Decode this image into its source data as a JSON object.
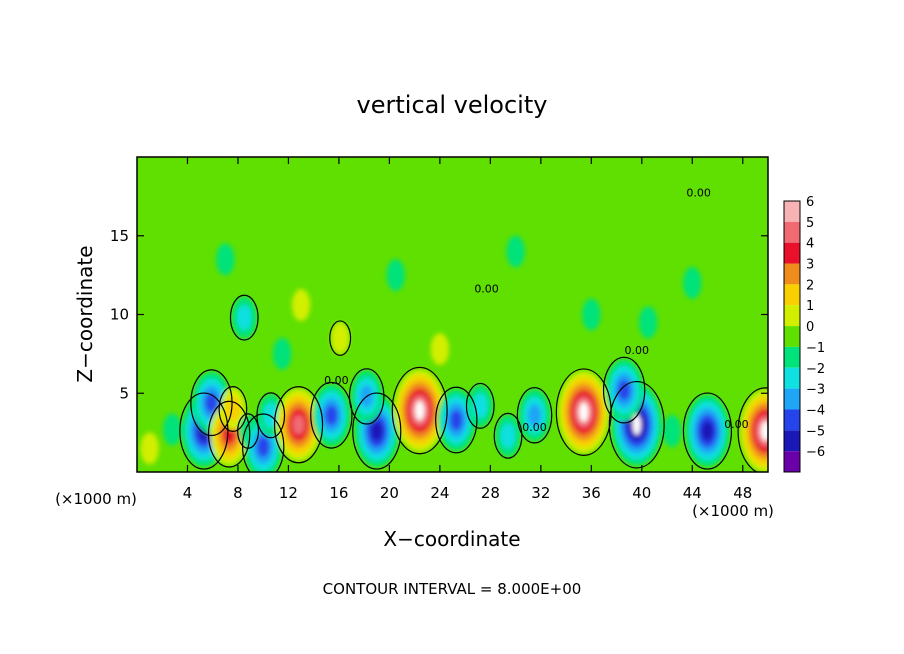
{
  "chart_data": {
    "type": "heatmap",
    "title": "vertical velocity",
    "xlabel": "X−coordinate",
    "ylabel": "Z−coordinate",
    "x_unit_left": "(×1000 m)",
    "x_unit_right": "(×1000 m)",
    "footer": "CONTOUR INTERVAL = 8.000E+00",
    "xlim": [
      0,
      50
    ],
    "ylim": [
      0,
      20
    ],
    "x_ticks": [
      4,
      8,
      12,
      16,
      20,
      24,
      28,
      32,
      36,
      40,
      44,
      48
    ],
    "x_tick_labels": [
      "4",
      "8",
      "12",
      "16",
      "20",
      "24",
      "28",
      "32",
      "36",
      "40",
      "44",
      "48"
    ],
    "y_ticks": [
      5,
      10,
      15
    ],
    "y_tick_labels": [
      "5",
      "10",
      "15"
    ],
    "contour_labels": [
      {
        "text": "0.00",
        "x": 31.5,
        "z": 2.6
      },
      {
        "text": "0.00",
        "x": 39.6,
        "z": 7.5
      },
      {
        "text": "0.00",
        "x": 47.5,
        "z": 2.8
      },
      {
        "text": "0.00",
        "x": 44.5,
        "z": 17.5
      },
      {
        "text": "0.00",
        "x": 27.7,
        "z": 11.4
      },
      {
        "text": "0.00",
        "x": 15.8,
        "z": 5.6
      }
    ],
    "colorbar": {
      "levels": [
        6,
        5,
        4,
        3,
        2,
        1,
        0,
        -1,
        -2,
        -3,
        -4,
        -5,
        -6
      ],
      "level_labels": [
        "6",
        "5",
        "4",
        "3",
        "2",
        "1",
        "0",
        "−1",
        "−2",
        "−3",
        "−4",
        "−5",
        "−6"
      ],
      "colors": [
        "#f7b3b3",
        "#f06a72",
        "#e8102a",
        "#f08c1c",
        "#f8d000",
        "#d2ef00",
        "#5fe000",
        "#00e27a",
        "#0fe0e0",
        "#1fa5f5",
        "#2545ea",
        "#1a19b8",
        "#6a00a8"
      ]
    },
    "cells": [
      {
        "x": 1.0,
        "z": 1.5,
        "w": 0.8
      },
      {
        "x": 2.8,
        "z": 2.7,
        "w": -1.0
      },
      {
        "x": 5.3,
        "z": 2.6,
        "w": -5.4
      },
      {
        "x": 5.9,
        "z": 4.4,
        "w": -4.0
      },
      {
        "x": 7.3,
        "z": 2.4,
        "w": 4.2
      },
      {
        "x": 7.6,
        "z": 4.0,
        "w": 2.4
      },
      {
        "x": 8.8,
        "z": 2.6,
        "w": -1.4
      },
      {
        "x": 10.0,
        "z": 1.6,
        "w": -4.3
      },
      {
        "x": 10.6,
        "z": 3.6,
        "w": -2.4
      },
      {
        "x": 12.8,
        "z": 3.0,
        "w": 5.2
      },
      {
        "x": 15.4,
        "z": 3.6,
        "w": -4.0
      },
      {
        "x": 19.0,
        "z": 2.6,
        "w": -5.2
      },
      {
        "x": 18.2,
        "z": 4.8,
        "w": -2.6
      },
      {
        "x": 22.4,
        "z": 3.9,
        "w": 6.2
      },
      {
        "x": 25.3,
        "z": 3.3,
        "w": -3.7
      },
      {
        "x": 27.2,
        "z": 4.2,
        "w": -2.4
      },
      {
        "x": 29.4,
        "z": 2.3,
        "w": -1.8
      },
      {
        "x": 31.5,
        "z": 3.6,
        "w": -3.2
      },
      {
        "x": 35.4,
        "z": 3.8,
        "w": 6.2
      },
      {
        "x": 39.6,
        "z": 3.0,
        "w": -5.6
      },
      {
        "x": 38.6,
        "z": 5.2,
        "w": -3.6
      },
      {
        "x": 42.4,
        "z": 2.6,
        "w": -1.2
      },
      {
        "x": 45.2,
        "z": 2.6,
        "w": -5.4
      },
      {
        "x": 49.8,
        "z": 2.6,
        "w": 5.6
      },
      {
        "x": 16.1,
        "z": 8.5,
        "w": 1.4
      },
      {
        "x": 13.0,
        "z": 10.6,
        "w": 0.7
      },
      {
        "x": 8.5,
        "z": 9.8,
        "w": -1.5
      },
      {
        "x": 7.0,
        "z": 13.5,
        "w": -0.8
      },
      {
        "x": 11.5,
        "z": 7.5,
        "w": -1.0
      },
      {
        "x": 20.5,
        "z": 12.5,
        "w": -0.9
      },
      {
        "x": 30.0,
        "z": 14.0,
        "w": -0.5
      },
      {
        "x": 36.0,
        "z": 10.0,
        "w": -0.6
      },
      {
        "x": 44.0,
        "z": 12.0,
        "w": -0.8
      },
      {
        "x": 24.0,
        "z": 7.8,
        "w": 0.9
      },
      {
        "x": 40.5,
        "z": 9.5,
        "w": -0.5
      }
    ]
  }
}
